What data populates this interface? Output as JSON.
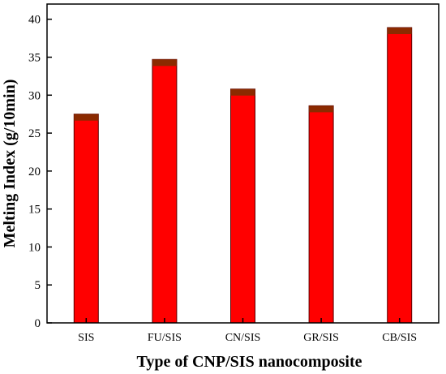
{
  "chart_data": {
    "type": "bar",
    "title": "",
    "xlabel": "Type of CNP/SIS nanocomposite",
    "ylabel": "Melting Index (g/10min)",
    "categories": [
      "SIS",
      "FU/SIS",
      "CN/SIS",
      "GR/SIS",
      "CB/SIS"
    ],
    "values": [
      27.5,
      34.7,
      30.8,
      28.6,
      38.9
    ],
    "ylim": [
      0,
      42
    ],
    "yticks": [
      0,
      5,
      10,
      15,
      20,
      25,
      30,
      35,
      40
    ],
    "grid": false,
    "legend": "none",
    "bar_color": "#ff0000",
    "bar_cap_color": "#8b2a00",
    "bar_edge_color": "#5a0000"
  }
}
